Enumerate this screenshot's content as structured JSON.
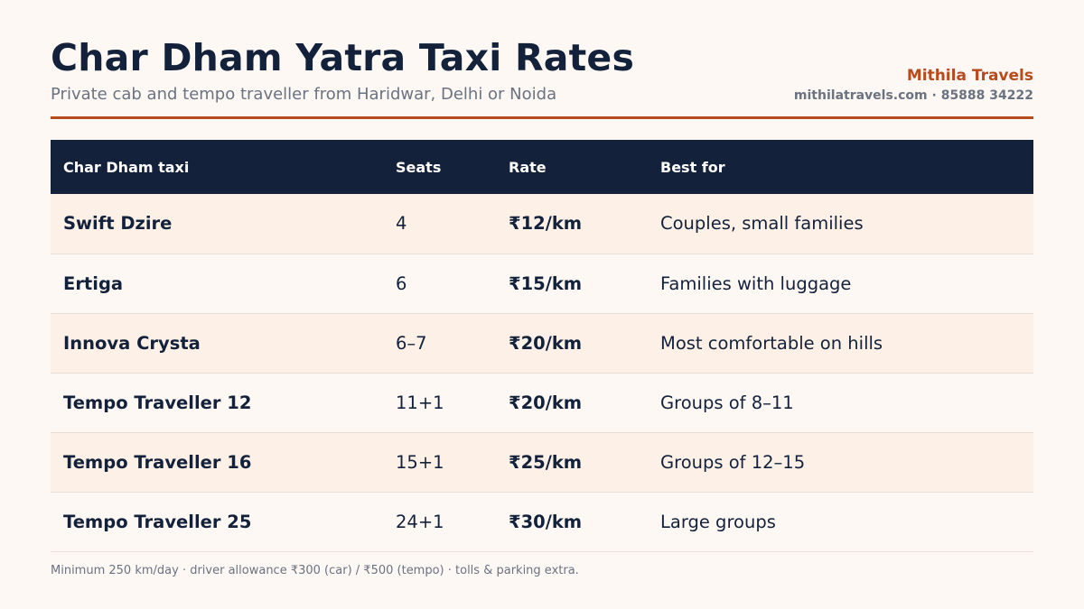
{
  "header": {
    "title": "Char Dham Yatra Taxi Rates",
    "subtitle": "Private cab and tempo traveller from Haridwar, Delhi or Noida",
    "brand_name": "Mithila Travels",
    "brand_contact": "mithilatravels.com · 85888 34222"
  },
  "table": {
    "columns": [
      "Char Dham taxi",
      "Seats",
      "Rate",
      "Best for"
    ],
    "rows": [
      {
        "vehicle": "Swift Dzire",
        "seats": "4",
        "rate": "₹12/km",
        "best_for": "Couples, small families"
      },
      {
        "vehicle": "Ertiga",
        "seats": "6",
        "rate": "₹15/km",
        "best_for": "Families with luggage"
      },
      {
        "vehicle": "Innova Crysta",
        "seats": "6–7",
        "rate": "₹20/km",
        "best_for": "Most comfortable on hills"
      },
      {
        "vehicle": "Tempo Traveller 12",
        "seats": "11+1",
        "rate": "₹20/km",
        "best_for": "Groups of 8–11"
      },
      {
        "vehicle": "Tempo Traveller 16",
        "seats": "15+1",
        "rate": "₹25/km",
        "best_for": "Groups of 12–15"
      },
      {
        "vehicle": "Tempo Traveller 25",
        "seats": "24+1",
        "rate": "₹30/km",
        "best_for": "Large groups"
      }
    ]
  },
  "footnote": "Minimum 250 km/day · driver allowance ₹300 (car) / ₹500 (tempo) · tolls & parking extra.",
  "colors": {
    "navy": "#13213a",
    "accent": "#b84a1c",
    "row_tint": "#fdf0e6",
    "background": "#fdf8f4"
  }
}
